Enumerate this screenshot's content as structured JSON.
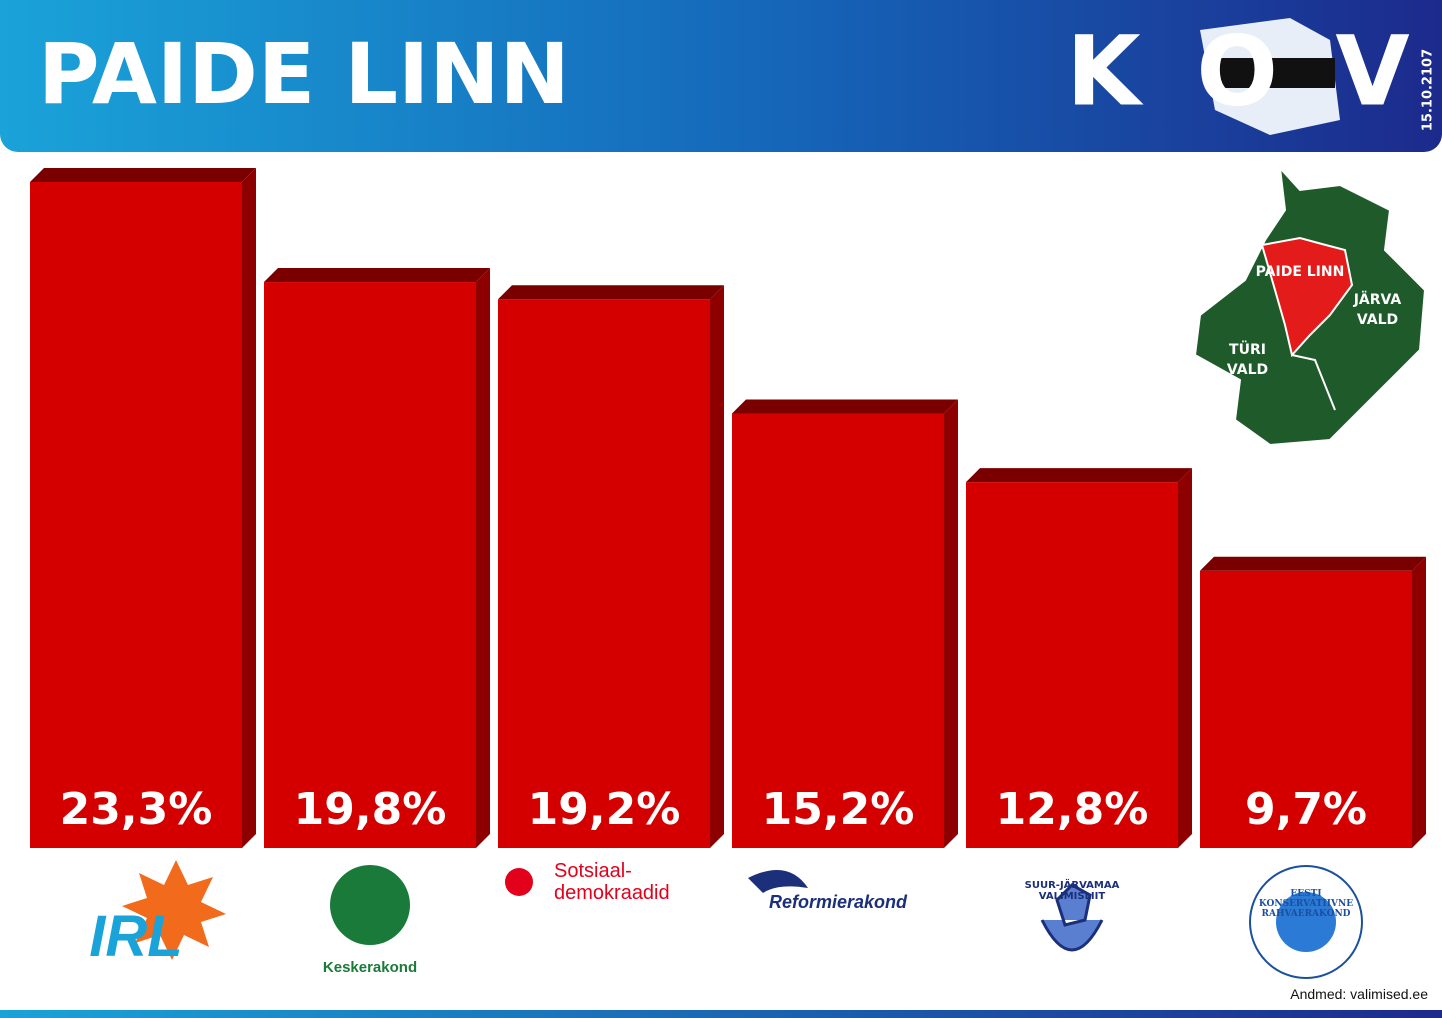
{
  "chart_data": {
    "type": "bar3d",
    "title": "PAIDE LINN",
    "logo_text": "KOV",
    "date": "15.10.2107",
    "categories": [
      "IRL",
      "Keskerakond",
      "Sotsiaal-demokraadid",
      "Reformierakond",
      "SUUR-JÄRVAMAA VALIMISLIIT",
      "EESTI KONSERVATIIVNE RAHVAERAKOND"
    ],
    "values": [
      23.3,
      19.8,
      19.2,
      15.2,
      12.8,
      9.7
    ],
    "value_labels": [
      "23,3%",
      "19,8%",
      "19,2%",
      "15,2%",
      "12,8%",
      "9,7%"
    ],
    "color": "#d40000",
    "map_labels": [
      "PAIDE LINN",
      "JÄRVA VALD",
      "TÜRI VALD"
    ],
    "source": "Andmed: valimised.ee"
  }
}
